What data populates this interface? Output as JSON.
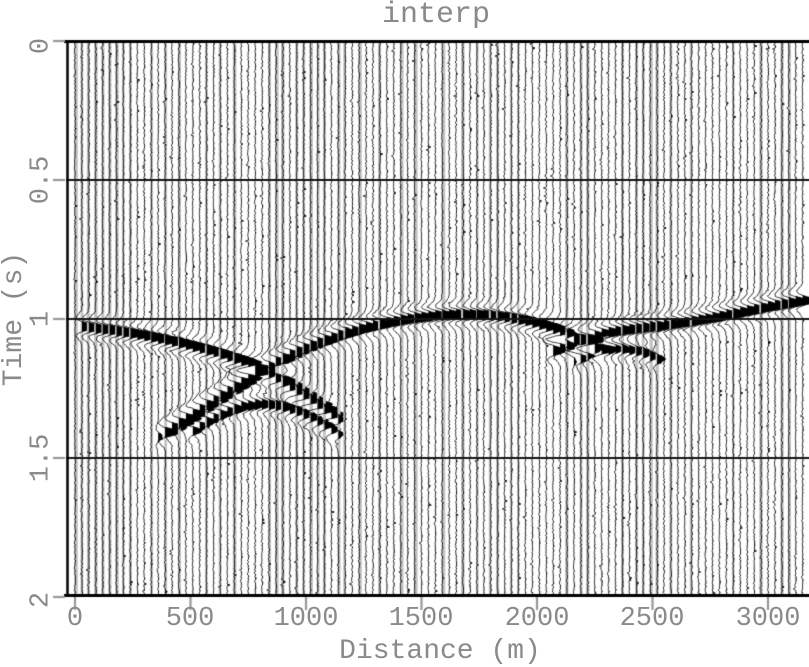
{
  "title": "interp",
  "x_axis": {
    "label": "Distance (m)",
    "tick_labels": [
      "0",
      "500",
      "1000",
      "1500",
      "2000",
      "2500",
      "3000"
    ]
  },
  "y_axis": {
    "label": "Time (s)",
    "tick_labels": [
      "0",
      "0.5",
      "1",
      "1.5",
      "2"
    ]
  },
  "colors": {
    "background": "#ffffff",
    "trace": "#000000",
    "border": "#000000",
    "grid": "#151515",
    "tick": "#999999",
    "text": "#8a8a8a",
    "gray_band": "#c3c3c3"
  },
  "chart_data": {
    "type": "line",
    "subtype": "seismic-wiggle-section",
    "title": "interp",
    "xlabel": "Distance (m)",
    "ylabel": "Time (s)",
    "xlim": [
      0,
      3180
    ],
    "ylim": [
      2,
      0
    ],
    "xticks": [
      0,
      500,
      1000,
      1500,
      2000,
      2500,
      3000
    ],
    "yticks": [
      0,
      0.5,
      1,
      1.5,
      2
    ],
    "grid_horizontal_at": [
      0.5,
      1.0,
      1.5
    ],
    "n_traces": 106,
    "trace_spacing_m": 30,
    "polarity_fill": "positive-black",
    "wavelet_hz": 12,
    "noise_amplitude_rel": 0.05,
    "events": [
      {
        "name": "left-dipping-limb",
        "amplitude": 1.0,
        "x": [
          0,
          150,
          300,
          450,
          600,
          750,
          900,
          1000,
          1080,
          1160
        ],
        "t": [
          1.025,
          1.04,
          1.06,
          1.086,
          1.118,
          1.158,
          1.224,
          1.278,
          1.325,
          1.375
        ]
      },
      {
        "name": "anticline-arch",
        "amplitude": 1.0,
        "x": [
          350,
          450,
          550,
          650,
          750,
          850,
          950,
          1050,
          1150,
          1250,
          1350,
          1450,
          1550,
          1650,
          1750,
          1850,
          1950,
          2050,
          2150,
          2250,
          2310
        ],
        "t": [
          1.43,
          1.374,
          1.32,
          1.266,
          1.212,
          1.163,
          1.12,
          1.085,
          1.055,
          1.031,
          1.012,
          0.998,
          0.988,
          0.983,
          0.984,
          0.992,
          1.006,
          1.028,
          1.06,
          1.094,
          1.112
        ]
      },
      {
        "name": "left-syncline-reverse-limb",
        "amplitude": 0.75,
        "x": [
          480,
          560,
          640,
          720,
          800,
          880,
          960,
          1040,
          1120,
          1160
        ],
        "t": [
          1.418,
          1.372,
          1.338,
          1.315,
          1.305,
          1.312,
          1.33,
          1.36,
          1.4,
          1.425
        ]
      },
      {
        "name": "right-rising-limb",
        "amplitude": 1.0,
        "x": [
          2040,
          2150,
          2250,
          2350,
          2450,
          2550,
          2650,
          2750,
          2850,
          2950,
          3050,
          3180
        ],
        "t": [
          1.125,
          1.085,
          1.058,
          1.042,
          1.032,
          1.022,
          1.01,
          0.996,
          0.98,
          0.963,
          0.947,
          0.93
        ]
      },
      {
        "name": "right-syncline-reverse-limb",
        "amplitude": 0.6,
        "x": [
          2150,
          2250,
          2350,
          2450,
          2550
        ],
        "t": [
          1.155,
          1.118,
          1.105,
          1.118,
          1.155
        ]
      }
    ]
  }
}
